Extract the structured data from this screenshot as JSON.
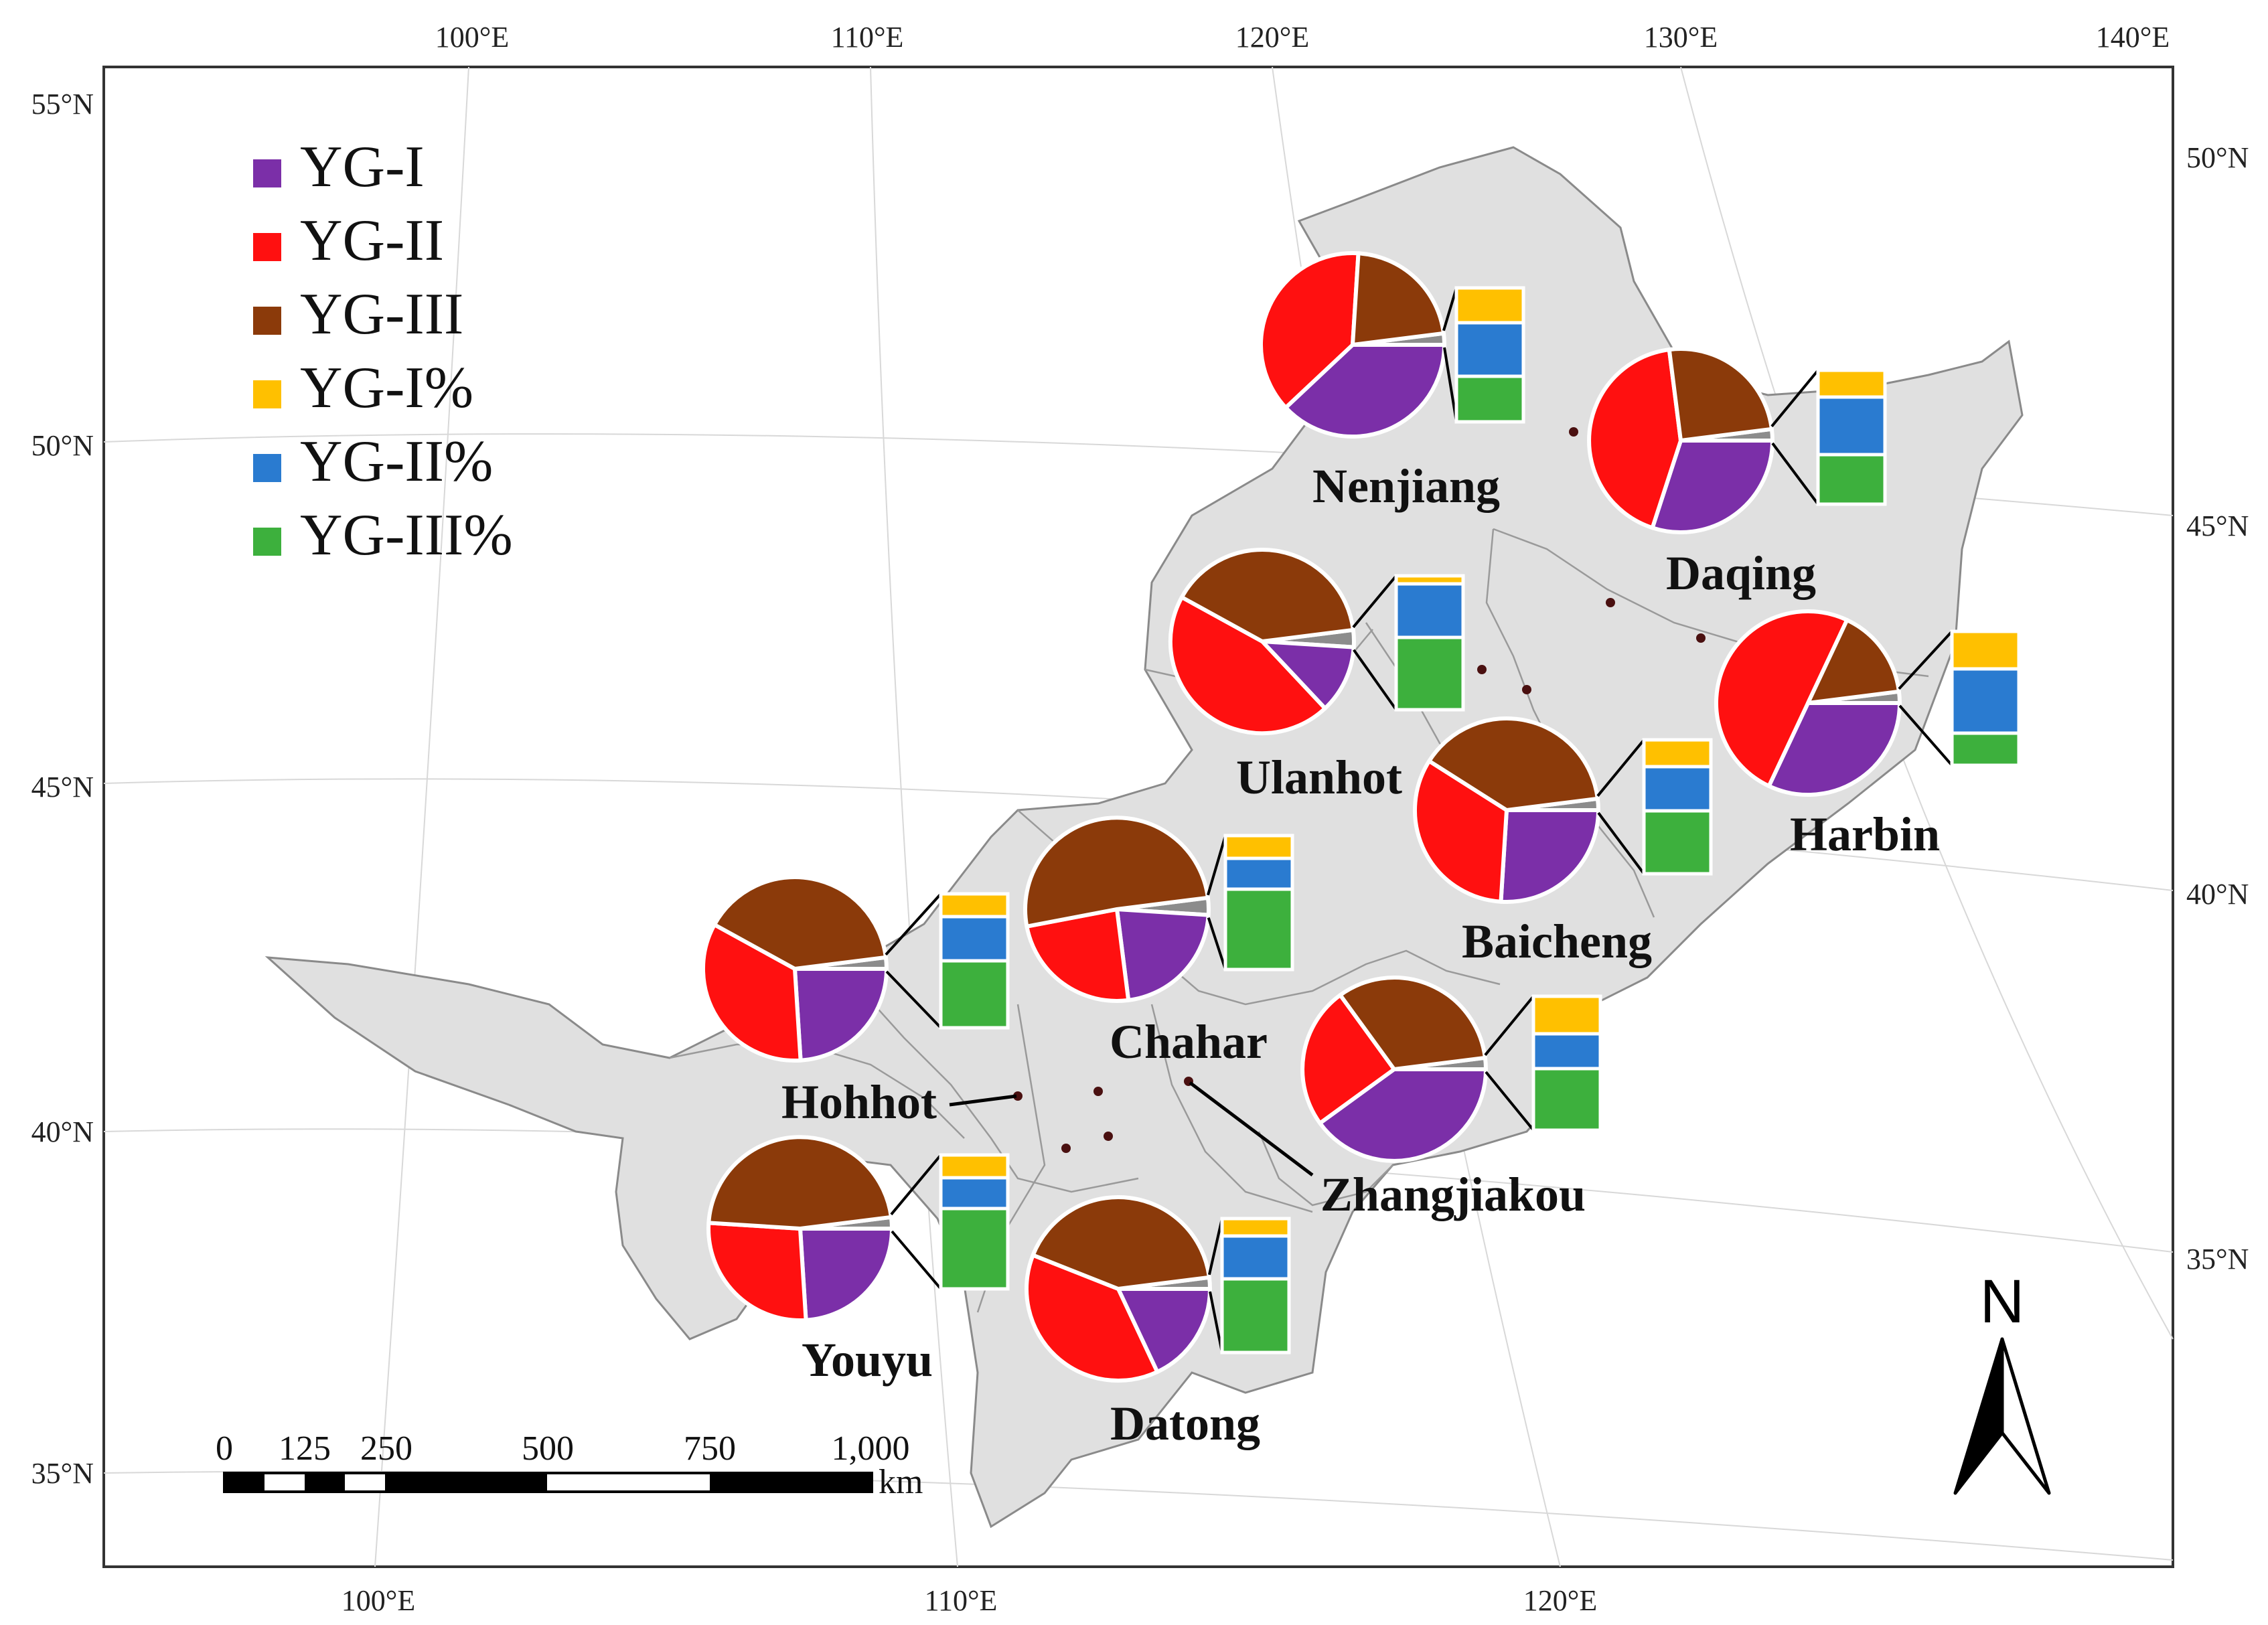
{
  "axes": {
    "top_lon": [
      "100°E",
      "110°E",
      "120°E",
      "130°E",
      "140°E"
    ],
    "bottom_lon": [
      "100°E",
      "110°E",
      "120°E"
    ],
    "left_lat": [
      "55°N",
      "50°N",
      "45°N",
      "40°N",
      "35°N"
    ],
    "right_lat": [
      "50°N",
      "45°N",
      "40°N",
      "35°N"
    ]
  },
  "legend": [
    {
      "label": "YG-I",
      "color": "#7b2fa8"
    },
    {
      "label": "YG-II",
      "color": "#ff1010"
    },
    {
      "label": "YG-III",
      "color": "#8b3a0a"
    },
    {
      "label": "YG-I%",
      "color": "#ffc000"
    },
    {
      "label": "YG-II%",
      "color": "#2a7bd0"
    },
    {
      "label": "YG-III%",
      "color": "#3db03d"
    }
  ],
  "sites": [
    {
      "name": "Nenjiang",
      "pie": {
        "YG-I": 38,
        "YG-II": 38,
        "YG-III": 22,
        "other": 2
      },
      "bar": {
        "YG-I%": 26,
        "YG-II%": 40,
        "YG-III%": 34
      }
    },
    {
      "name": "Daqing",
      "pie": {
        "YG-I": 30,
        "YG-II": 43,
        "YG-III": 25,
        "other": 2
      },
      "bar": {
        "YG-I%": 20,
        "YG-II%": 43,
        "YG-III%": 37
      }
    },
    {
      "name": "Ulanhot",
      "pie": {
        "YG-I": 12,
        "YG-II": 45,
        "YG-III": 40,
        "other": 3
      },
      "bar": {
        "YG-I%": 6,
        "YG-II%": 40,
        "YG-III%": 54
      }
    },
    {
      "name": "Harbin",
      "pie": {
        "YG-I": 32,
        "YG-II": 50,
        "YG-III": 16,
        "other": 2
      },
      "bar": {
        "YG-I%": 28,
        "YG-II%": 48,
        "YG-III%": 24
      }
    },
    {
      "name": "Baicheng",
      "pie": {
        "YG-I": 26,
        "YG-II": 33,
        "YG-III": 39,
        "other": 2
      },
      "bar": {
        "YG-I%": 20,
        "YG-II%": 33,
        "YG-III%": 47
      }
    },
    {
      "name": "Chahar",
      "pie": {
        "YG-I": 22,
        "YG-II": 24,
        "YG-III": 51,
        "other": 3
      },
      "bar": {
        "YG-I%": 17,
        "YG-II%": 23,
        "YG-III%": 60
      }
    },
    {
      "name": "Hohhot",
      "pie": {
        "YG-I": 24,
        "YG-II": 34,
        "YG-III": 40,
        "other": 2
      },
      "bar": {
        "YG-I%": 17,
        "YG-II%": 33,
        "YG-III%": 50
      }
    },
    {
      "name": "Zhangjiakou",
      "pie": {
        "YG-I": 40,
        "YG-II": 25,
        "YG-III": 33,
        "other": 2
      },
      "bar": {
        "YG-I%": 28,
        "YG-II%": 26,
        "YG-III%": 46
      }
    },
    {
      "name": "Youyu",
      "pie": {
        "YG-I": 24,
        "YG-II": 27,
        "YG-III": 47,
        "other": 2
      },
      "bar": {
        "YG-I%": 17,
        "YG-II%": 23,
        "YG-III%": 60
      }
    },
    {
      "name": "Datong",
      "pie": {
        "YG-I": 18,
        "YG-II": 38,
        "YG-III": 42,
        "other": 2
      },
      "bar": {
        "YG-I%": 13,
        "YG-II%": 32,
        "YG-III%": 55
      }
    }
  ],
  "scale_bar": {
    "labels": [
      "0",
      "125",
      "250",
      "500",
      "750",
      "1,000"
    ],
    "unit": "km"
  },
  "north_arrow": {
    "label": "N"
  },
  "other_color": "#8c8c8c"
}
